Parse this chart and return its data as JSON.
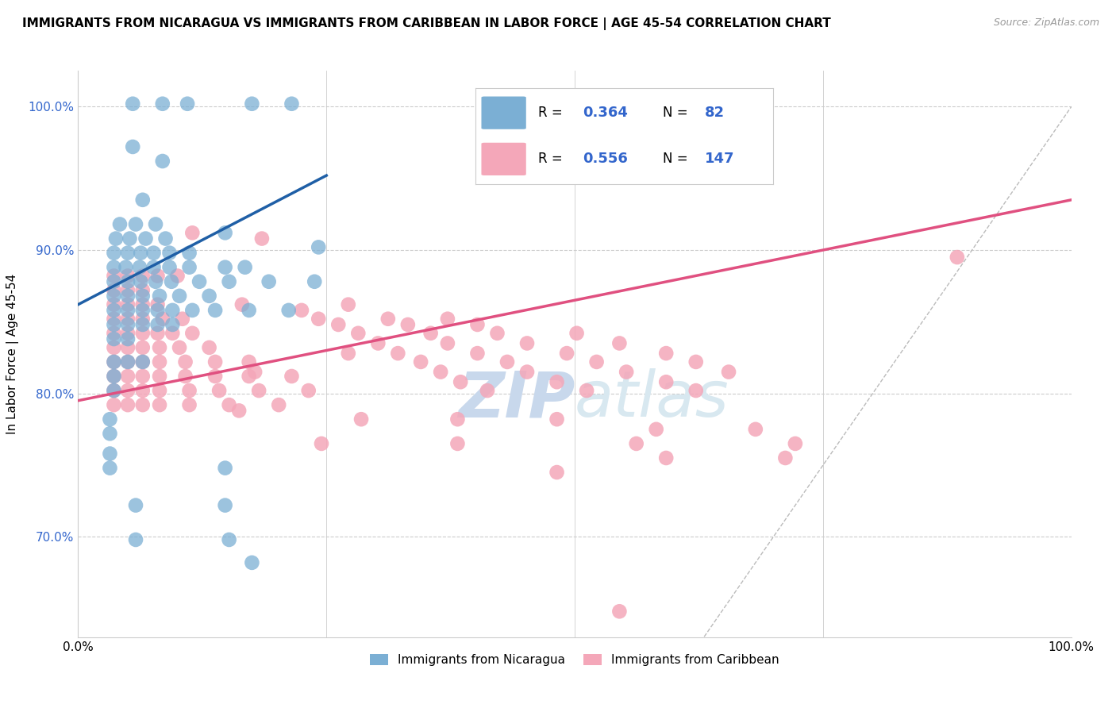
{
  "title": "IMMIGRANTS FROM NICARAGUA VS IMMIGRANTS FROM CARIBBEAN IN LABOR FORCE | AGE 45-54 CORRELATION CHART",
  "source": "Source: ZipAtlas.com",
  "ylabel": "In Labor Force | Age 45-54",
  "xlim": [
    0.0,
    1.0
  ],
  "ylim": [
    0.63,
    1.025
  ],
  "yticks": [
    0.7,
    0.8,
    0.9,
    1.0
  ],
  "ytick_labels": [
    "70.0%",
    "80.0%",
    "90.0%",
    "100.0%"
  ],
  "xticks": [
    0.0,
    0.25,
    0.5,
    0.75,
    1.0
  ],
  "xtick_labels": [
    "0.0%",
    "",
    "",
    "",
    "100.0%"
  ],
  "nicaragua_color": "#7BAFD4",
  "caribbean_color": "#F4A7B9",
  "nicaragua_R": 0.364,
  "nicaragua_N": 82,
  "caribbean_R": 0.556,
  "caribbean_N": 147,
  "nicaragua_line_color": "#1F5FA6",
  "caribbean_line_color": "#E05080",
  "nicaragua_line": [
    [
      0.0,
      0.862
    ],
    [
      0.25,
      0.952
    ]
  ],
  "caribbean_line": [
    [
      0.0,
      0.795
    ],
    [
      1.0,
      0.935
    ]
  ],
  "diagonal_color": "#BBBBBB",
  "background_color": "#FFFFFF",
  "grid_color": "#CCCCCC",
  "nicaragua_scatter": [
    [
      0.055,
      1.002
    ],
    [
      0.085,
      1.002
    ],
    [
      0.11,
      1.002
    ],
    [
      0.175,
      1.002
    ],
    [
      0.215,
      1.002
    ],
    [
      0.055,
      0.972
    ],
    [
      0.085,
      0.962
    ],
    [
      0.065,
      0.935
    ],
    [
      0.042,
      0.918
    ],
    [
      0.058,
      0.918
    ],
    [
      0.078,
      0.918
    ],
    [
      0.038,
      0.908
    ],
    [
      0.052,
      0.908
    ],
    [
      0.068,
      0.908
    ],
    [
      0.088,
      0.908
    ],
    [
      0.036,
      0.898
    ],
    [
      0.05,
      0.898
    ],
    [
      0.063,
      0.898
    ],
    [
      0.076,
      0.898
    ],
    [
      0.092,
      0.898
    ],
    [
      0.112,
      0.898
    ],
    [
      0.036,
      0.888
    ],
    [
      0.048,
      0.888
    ],
    [
      0.062,
      0.888
    ],
    [
      0.076,
      0.888
    ],
    [
      0.092,
      0.888
    ],
    [
      0.112,
      0.888
    ],
    [
      0.148,
      0.888
    ],
    [
      0.168,
      0.888
    ],
    [
      0.036,
      0.878
    ],
    [
      0.05,
      0.878
    ],
    [
      0.063,
      0.878
    ],
    [
      0.078,
      0.878
    ],
    [
      0.094,
      0.878
    ],
    [
      0.122,
      0.878
    ],
    [
      0.152,
      0.878
    ],
    [
      0.192,
      0.878
    ],
    [
      0.238,
      0.878
    ],
    [
      0.036,
      0.868
    ],
    [
      0.05,
      0.868
    ],
    [
      0.065,
      0.868
    ],
    [
      0.082,
      0.868
    ],
    [
      0.102,
      0.868
    ],
    [
      0.132,
      0.868
    ],
    [
      0.036,
      0.858
    ],
    [
      0.05,
      0.858
    ],
    [
      0.065,
      0.858
    ],
    [
      0.08,
      0.858
    ],
    [
      0.095,
      0.858
    ],
    [
      0.115,
      0.858
    ],
    [
      0.138,
      0.858
    ],
    [
      0.172,
      0.858
    ],
    [
      0.212,
      0.858
    ],
    [
      0.036,
      0.848
    ],
    [
      0.05,
      0.848
    ],
    [
      0.065,
      0.848
    ],
    [
      0.08,
      0.848
    ],
    [
      0.095,
      0.848
    ],
    [
      0.036,
      0.838
    ],
    [
      0.05,
      0.838
    ],
    [
      0.036,
      0.822
    ],
    [
      0.05,
      0.822
    ],
    [
      0.065,
      0.822
    ],
    [
      0.036,
      0.812
    ],
    [
      0.036,
      0.802
    ],
    [
      0.148,
      0.912
    ],
    [
      0.242,
      0.902
    ],
    [
      0.032,
      0.782
    ],
    [
      0.032,
      0.772
    ],
    [
      0.032,
      0.758
    ],
    [
      0.032,
      0.748
    ],
    [
      0.148,
      0.748
    ],
    [
      0.058,
      0.722
    ],
    [
      0.148,
      0.722
    ],
    [
      0.058,
      0.698
    ],
    [
      0.152,
      0.698
    ],
    [
      0.175,
      0.682
    ]
  ],
  "caribbean_scatter": [
    [
      0.036,
      0.882
    ],
    [
      0.05,
      0.882
    ],
    [
      0.065,
      0.882
    ],
    [
      0.08,
      0.882
    ],
    [
      0.1,
      0.882
    ],
    [
      0.036,
      0.872
    ],
    [
      0.05,
      0.872
    ],
    [
      0.065,
      0.872
    ],
    [
      0.036,
      0.862
    ],
    [
      0.05,
      0.862
    ],
    [
      0.065,
      0.862
    ],
    [
      0.08,
      0.862
    ],
    [
      0.036,
      0.852
    ],
    [
      0.05,
      0.852
    ],
    [
      0.065,
      0.852
    ],
    [
      0.085,
      0.852
    ],
    [
      0.105,
      0.852
    ],
    [
      0.036,
      0.842
    ],
    [
      0.05,
      0.842
    ],
    [
      0.065,
      0.842
    ],
    [
      0.08,
      0.842
    ],
    [
      0.095,
      0.842
    ],
    [
      0.115,
      0.842
    ],
    [
      0.036,
      0.832
    ],
    [
      0.05,
      0.832
    ],
    [
      0.065,
      0.832
    ],
    [
      0.082,
      0.832
    ],
    [
      0.102,
      0.832
    ],
    [
      0.132,
      0.832
    ],
    [
      0.036,
      0.822
    ],
    [
      0.05,
      0.822
    ],
    [
      0.065,
      0.822
    ],
    [
      0.082,
      0.822
    ],
    [
      0.108,
      0.822
    ],
    [
      0.138,
      0.822
    ],
    [
      0.172,
      0.822
    ],
    [
      0.036,
      0.812
    ],
    [
      0.05,
      0.812
    ],
    [
      0.065,
      0.812
    ],
    [
      0.082,
      0.812
    ],
    [
      0.108,
      0.812
    ],
    [
      0.138,
      0.812
    ],
    [
      0.172,
      0.812
    ],
    [
      0.215,
      0.812
    ],
    [
      0.036,
      0.802
    ],
    [
      0.05,
      0.802
    ],
    [
      0.065,
      0.802
    ],
    [
      0.082,
      0.802
    ],
    [
      0.112,
      0.802
    ],
    [
      0.142,
      0.802
    ],
    [
      0.182,
      0.802
    ],
    [
      0.232,
      0.802
    ],
    [
      0.036,
      0.792
    ],
    [
      0.05,
      0.792
    ],
    [
      0.065,
      0.792
    ],
    [
      0.082,
      0.792
    ],
    [
      0.112,
      0.792
    ],
    [
      0.152,
      0.792
    ],
    [
      0.202,
      0.792
    ],
    [
      0.115,
      0.912
    ],
    [
      0.185,
      0.908
    ],
    [
      0.165,
      0.862
    ],
    [
      0.225,
      0.858
    ],
    [
      0.272,
      0.862
    ],
    [
      0.242,
      0.852
    ],
    [
      0.312,
      0.852
    ],
    [
      0.372,
      0.852
    ],
    [
      0.262,
      0.848
    ],
    [
      0.332,
      0.848
    ],
    [
      0.402,
      0.848
    ],
    [
      0.282,
      0.842
    ],
    [
      0.355,
      0.842
    ],
    [
      0.422,
      0.842
    ],
    [
      0.502,
      0.842
    ],
    [
      0.302,
      0.835
    ],
    [
      0.372,
      0.835
    ],
    [
      0.452,
      0.835
    ],
    [
      0.545,
      0.835
    ],
    [
      0.322,
      0.828
    ],
    [
      0.402,
      0.828
    ],
    [
      0.492,
      0.828
    ],
    [
      0.592,
      0.828
    ],
    [
      0.345,
      0.822
    ],
    [
      0.432,
      0.822
    ],
    [
      0.522,
      0.822
    ],
    [
      0.622,
      0.822
    ],
    [
      0.365,
      0.815
    ],
    [
      0.452,
      0.815
    ],
    [
      0.552,
      0.815
    ],
    [
      0.655,
      0.815
    ],
    [
      0.385,
      0.808
    ],
    [
      0.482,
      0.808
    ],
    [
      0.592,
      0.808
    ],
    [
      0.412,
      0.802
    ],
    [
      0.512,
      0.802
    ],
    [
      0.622,
      0.802
    ],
    [
      0.162,
      0.788
    ],
    [
      0.285,
      0.782
    ],
    [
      0.382,
      0.782
    ],
    [
      0.482,
      0.782
    ],
    [
      0.582,
      0.775
    ],
    [
      0.682,
      0.775
    ],
    [
      0.245,
      0.765
    ],
    [
      0.382,
      0.765
    ],
    [
      0.562,
      0.765
    ],
    [
      0.722,
      0.765
    ],
    [
      0.592,
      0.755
    ],
    [
      0.712,
      0.755
    ],
    [
      0.482,
      0.745
    ],
    [
      0.272,
      0.828
    ],
    [
      0.178,
      0.815
    ],
    [
      0.885,
      0.895
    ],
    [
      0.545,
      0.648
    ]
  ]
}
